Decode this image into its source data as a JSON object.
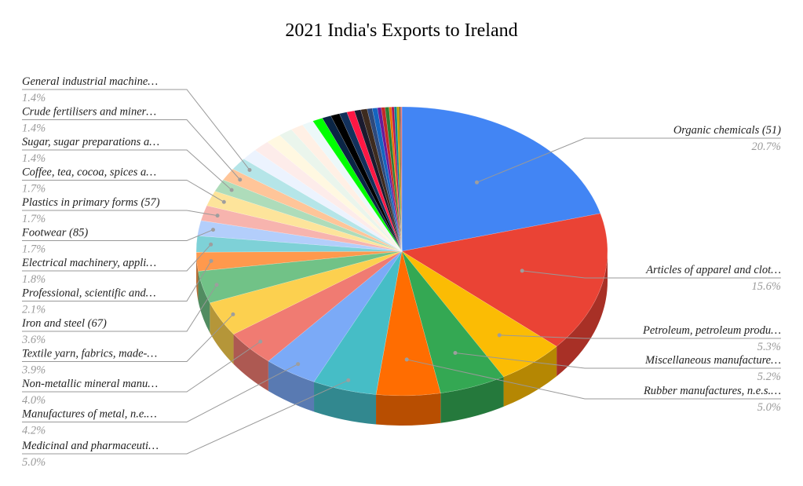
{
  "chart_data": {
    "type": "pie",
    "title": "2021 India's Exports to Ireland",
    "slices": [
      {
        "label": "Organic chemicals (51)",
        "value": 20.7,
        "pct_label": "20.7%",
        "color": "#4285f4"
      },
      {
        "label": "Articles of apparel and clot…",
        "value": 15.6,
        "pct_label": "15.6%",
        "color": "#ea4335"
      },
      {
        "label": "Petroleum, petroleum produ…",
        "value": 5.3,
        "pct_label": "5.3%",
        "color": "#fbbc04"
      },
      {
        "label": "Miscellaneous manufacture…",
        "value": 5.2,
        "pct_label": "5.2%",
        "color": "#34a853"
      },
      {
        "label": "Rubber manufactures, n.e.s.…",
        "value": 5.0,
        "pct_label": "5.0%",
        "color": "#ff6d01"
      },
      {
        "label": "Medicinal and pharmaceuti…",
        "value": 5.0,
        "pct_label": "5.0%",
        "color": "#46bdc6"
      },
      {
        "label": "Manufactures of metal, n.e.…",
        "value": 4.2,
        "pct_label": "4.2%",
        "color": "#7baaf7"
      },
      {
        "label": "Non-metallic mineral manu…",
        "value": 4.0,
        "pct_label": "4.0%",
        "color": "#f07b72"
      },
      {
        "label": "Textile yarn, fabrics, made-…",
        "value": 3.9,
        "pct_label": "3.9%",
        "color": "#fcd04f"
      },
      {
        "label": "Iron and steel (67)",
        "value": 3.6,
        "pct_label": "3.6%",
        "color": "#71c287"
      },
      {
        "label": "Professional, scientific and…",
        "value": 2.1,
        "pct_label": "2.1%",
        "color": "#ff994d"
      },
      {
        "label": "Electrical machinery, appli…",
        "value": 1.8,
        "pct_label": "1.8%",
        "color": "#7ed1d7"
      },
      {
        "label": "Footwear (85)",
        "value": 1.7,
        "pct_label": "1.7%",
        "color": "#b3cefb"
      },
      {
        "label": "Plastics in primary forms (57)",
        "value": 1.7,
        "pct_label": "1.7%",
        "color": "#f7b4ae"
      },
      {
        "label": "Coffee, tea, cocoa, spices a…",
        "value": 1.7,
        "pct_label": "1.7%",
        "color": "#fde49b"
      },
      {
        "label": "Sugar, sugar preparations a…",
        "value": 1.4,
        "pct_label": "1.4%",
        "color": "#aedcba"
      },
      {
        "label": "Crude fertilisers and miner…",
        "value": 1.4,
        "pct_label": "1.4%",
        "color": "#ffc599"
      },
      {
        "label": "General industrial machine…",
        "value": 1.4,
        "pct_label": "1.4%",
        "color": "#b5e5e8"
      },
      {
        "label": "",
        "value": 1.3,
        "pct_label": "",
        "color": "#ecf3fe"
      },
      {
        "label": "",
        "value": 1.3,
        "pct_label": "",
        "color": "#fdecea"
      },
      {
        "label": "",
        "value": 1.2,
        "pct_label": "",
        "color": "#fff8e1"
      },
      {
        "label": "",
        "value": 1.1,
        "pct_label": "",
        "color": "#eaf5ec"
      },
      {
        "label": "",
        "value": 1.0,
        "pct_label": "",
        "color": "#fff0e5"
      },
      {
        "label": "",
        "value": 0.9,
        "pct_label": "",
        "color": "#ecf8f9"
      },
      {
        "label": "",
        "value": 0.8,
        "pct_label": "",
        "color": "#00ff00"
      },
      {
        "label": "",
        "value": 0.7,
        "pct_label": "",
        "color": "#0b2545"
      },
      {
        "label": "",
        "value": 0.7,
        "pct_label": "",
        "color": "#000000"
      },
      {
        "label": "",
        "value": 0.6,
        "pct_label": "",
        "color": "#13315c"
      },
      {
        "label": "",
        "value": 0.6,
        "pct_label": "",
        "color": "#ff1744"
      },
      {
        "label": "",
        "value": 0.5,
        "pct_label": "",
        "color": "#1a1a2e"
      },
      {
        "label": "",
        "value": 0.5,
        "pct_label": "",
        "color": "#3d2b1f"
      },
      {
        "label": "",
        "value": 0.4,
        "pct_label": "",
        "color": "#2e4a7d"
      },
      {
        "label": "",
        "value": 0.4,
        "pct_label": "",
        "color": "#1565c0"
      },
      {
        "label": "",
        "value": 0.3,
        "pct_label": "",
        "color": "#6a1b9a"
      },
      {
        "label": "",
        "value": 0.3,
        "pct_label": "",
        "color": "#c62828"
      },
      {
        "label": "",
        "value": 0.3,
        "pct_label": "",
        "color": "#2e7d32"
      },
      {
        "label": "",
        "value": 0.2,
        "pct_label": "",
        "color": "#ef6c00"
      },
      {
        "label": "",
        "value": 0.2,
        "pct_label": "",
        "color": "#ad1457"
      },
      {
        "label": "",
        "value": 0.2,
        "pct_label": "",
        "color": "#00838f"
      },
      {
        "label": "",
        "value": 0.2,
        "pct_label": "",
        "color": "#c0a000"
      },
      {
        "label": "",
        "value": 0.1,
        "pct_label": "",
        "color": "#5d4037"
      },
      {
        "label": "",
        "value": 0.1,
        "pct_label": "",
        "color": "#e57373"
      }
    ]
  }
}
